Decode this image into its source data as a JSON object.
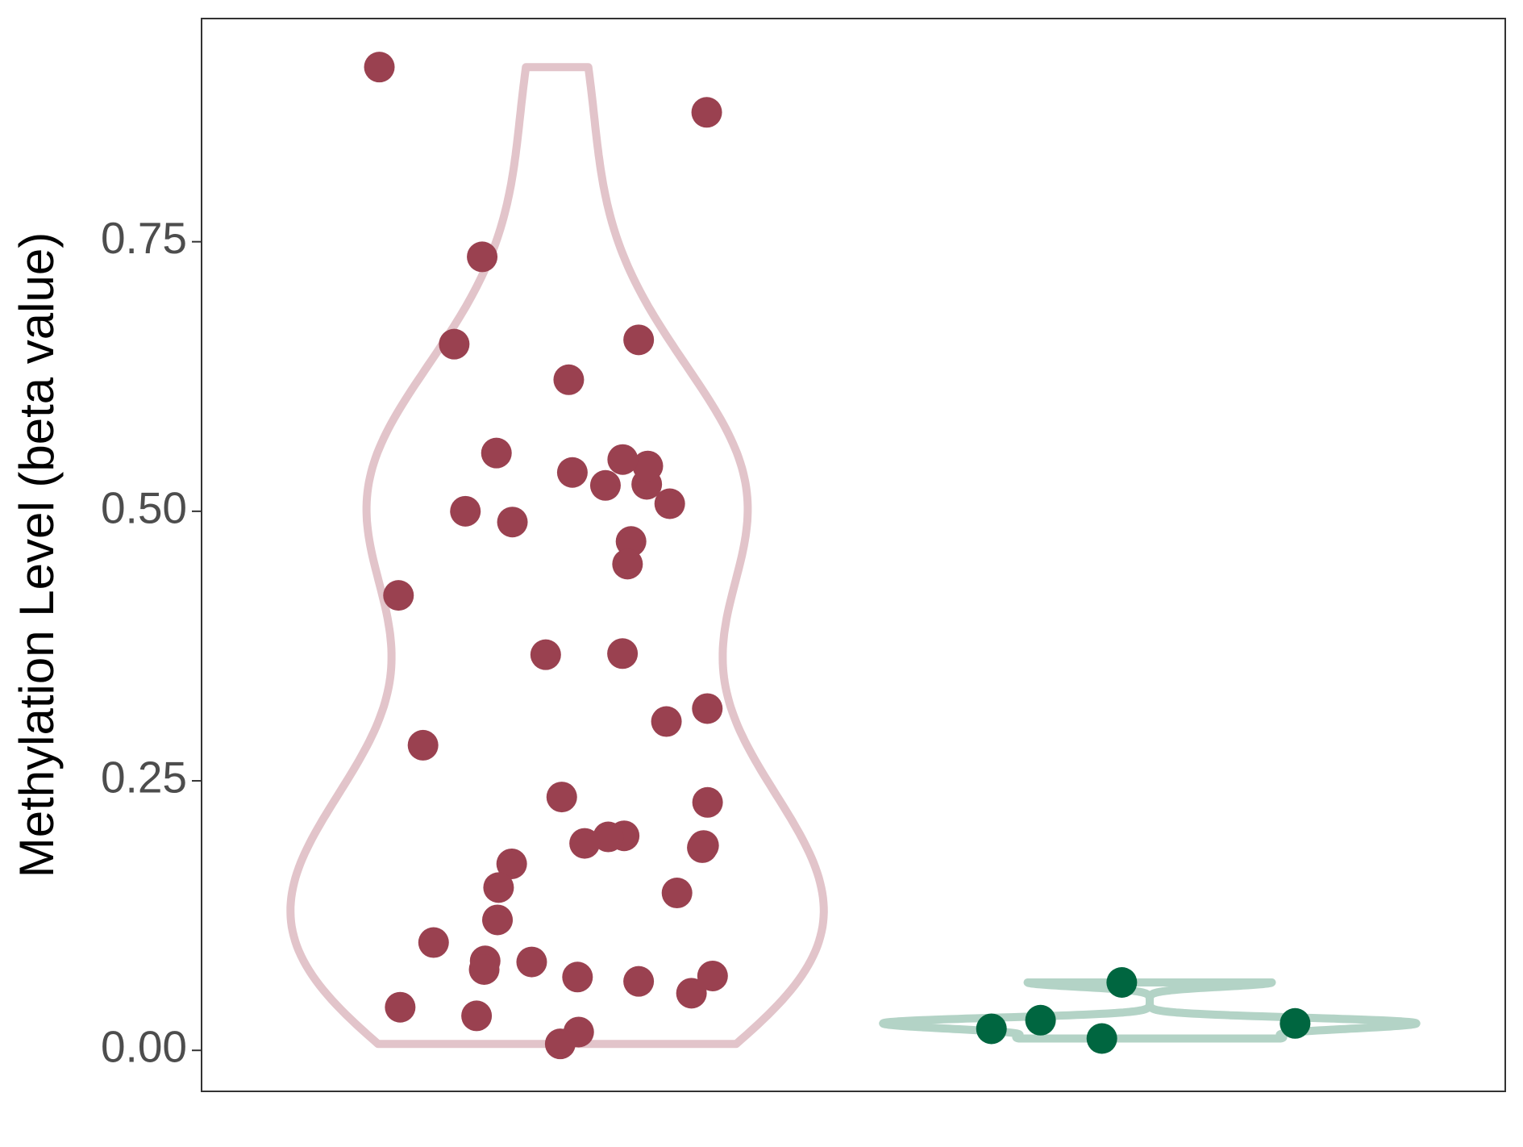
{
  "chart_data": {
    "type": "violin",
    "y_label": "Methylation Level (beta value)",
    "ylim": [
      -0.038,
      0.957
    ],
    "yticks": [
      {
        "value": 0,
        "label": "0.00"
      },
      {
        "value": 0.25,
        "label": "0.25"
      },
      {
        "value": 0.5,
        "label": "0.50"
      },
      {
        "value": 0.75,
        "label": "0.75"
      }
    ],
    "categories": [
      null,
      null
    ],
    "groups": [
      {
        "color": "#9a4150",
        "violin_color": "#e2c4ca",
        "values": [
          0.912,
          0.87,
          0.736,
          0.655,
          0.659,
          0.622,
          0.554,
          0.525,
          0.542,
          0.536,
          0.548,
          0.524,
          0.507,
          0.5,
          0.49,
          0.472,
          0.451,
          0.422,
          0.368,
          0.367,
          0.317,
          0.305,
          0.283,
          0.235,
          0.23,
          0.199,
          0.198,
          0.192,
          0.19,
          0.188,
          0.173,
          0.151,
          0.146,
          0.121,
          0.1,
          0.083,
          0.082,
          0.075,
          0.069,
          0.068,
          0.064,
          0.053,
          0.04,
          0.032,
          0.017,
          0.006
        ]
      },
      {
        "color": "#006640",
        "violin_color": "#b3d3c6",
        "values": [
          0.063,
          0.028,
          0.025,
          0.02,
          0.011
        ]
      }
    ]
  }
}
